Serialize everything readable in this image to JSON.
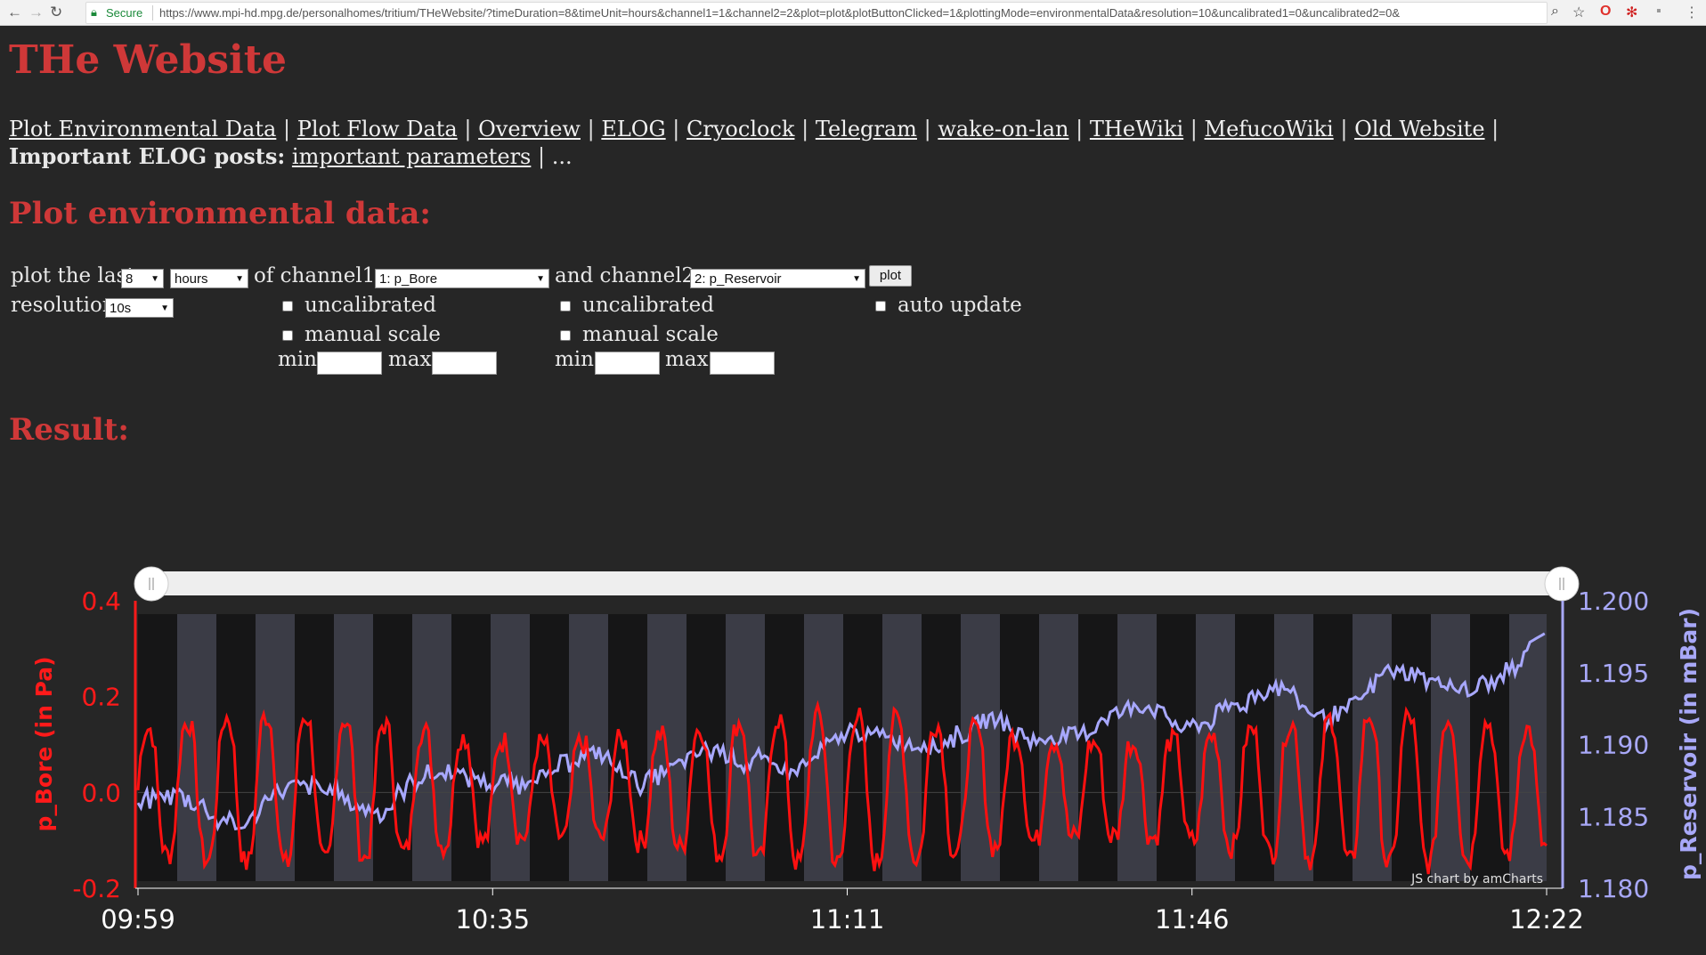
{
  "browser": {
    "secure_label": "Secure",
    "url": "https://www.mpi-hd.mpg.de/personalhomes/tritium/THeWebsite/?timeDuration=8&timeUnit=hours&channel1=1&channel2=2&plot=plot&plotButtonClicked=1&plottingMode=environmentalData&resolution=10&uncalibrated1=0&uncalibrated2=0&"
  },
  "page": {
    "title": "THe Website",
    "nav_links": [
      "Plot Environmental Data",
      "Plot Flow Data",
      "Overview",
      "ELOG",
      "Cryoclock",
      "Telegram",
      "wake-on-lan",
      "THeWiki",
      "MefucoWiki",
      "Old Website"
    ],
    "elog_label": "Important ELOG posts:",
    "elog_link": "important parameters",
    "elog_more": "...",
    "plot_heading": "Plot environmental data:",
    "result_heading": "Result:"
  },
  "form": {
    "plot_the_last_label": "plot the last",
    "duration_value": "8",
    "unit_value": "hours",
    "of_channel1_label": "of channel1 :",
    "channel1_value": "1: p_Bore",
    "and_channel2_label": "and channel2 :",
    "channel2_value": "2: p_Reservoir",
    "plot_button": "plot",
    "resolution_label": "resolution",
    "resolution_value": "10s",
    "uncalibrated_label": "uncalibrated",
    "manual_scale_label": "manual scale",
    "auto_update_label": "auto update",
    "min_label": "min",
    "max_label": "max"
  },
  "chart_data": {
    "type": "line",
    "title": "",
    "credit": "JS chart by amCharts",
    "x_tick_labels": [
      "09:59",
      "10:35",
      "11:11",
      "11:46",
      "12:22"
    ],
    "x_range": [
      "09:59",
      "12:22"
    ],
    "left_axis": {
      "label": "p_Bore (in Pa)",
      "range": [
        -0.2,
        0.4
      ],
      "ticks": [
        -0.2,
        0.0,
        0.2,
        0.4
      ],
      "tick_labels": [
        "-0.2",
        "0.0",
        "0.2",
        "0.4"
      ],
      "color": "#ff1a1a"
    },
    "right_axis": {
      "label": "p_Reservoir (in mBar)",
      "range": [
        1.18,
        1.2
      ],
      "ticks": [
        1.18,
        1.185,
        1.19,
        1.195,
        1.2
      ],
      "tick_labels": [
        "1.180",
        "1.185",
        "1.190",
        "1.195",
        "1.200"
      ],
      "color": "#a8a8f8"
    },
    "series": [
      {
        "name": "p_Bore",
        "axis": "left",
        "color": "#ff1010",
        "pattern": "oscillating",
        "period_minutes": 4,
        "oscillation_range": [
          -0.18,
          0.17
        ],
        "peaks_range": [
          0.1,
          0.22
        ],
        "troughs_range": [
          -0.2,
          -0.1
        ]
      },
      {
        "name": "p_Reservoir",
        "axis": "right",
        "color": "#a8a8ff",
        "pattern": "noisy rising trend",
        "trend": [
          {
            "time": "09:59",
            "value": 1.1853
          },
          {
            "time": "10:35",
            "value": 1.1875
          },
          {
            "time": "11:11",
            "value": 1.19
          },
          {
            "time": "11:46",
            "value": 1.1925
          },
          {
            "time": "12:22",
            "value": 1.1955
          }
        ],
        "end_value": 1.1978
      }
    ],
    "scrollbar": {
      "range": [
        "09:59",
        "12:22"
      ]
    },
    "band_colors": {
      "odd": "#3b3c46",
      "even": "#161617"
    }
  }
}
